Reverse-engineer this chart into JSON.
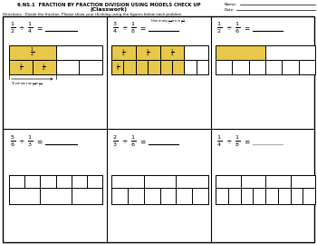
{
  "title": "6.NS.1  FRACTION BY FRACTION DIVISION USING MODELS CHECK UP",
  "subtitle": "(Classwork)",
  "directions": "Directions:  Divide the fraction  Please show your thinking using the figures below each problem",
  "gold_color": "#E8C84A",
  "border_color": "#000000",
  "bg_color": "#ffffff"
}
